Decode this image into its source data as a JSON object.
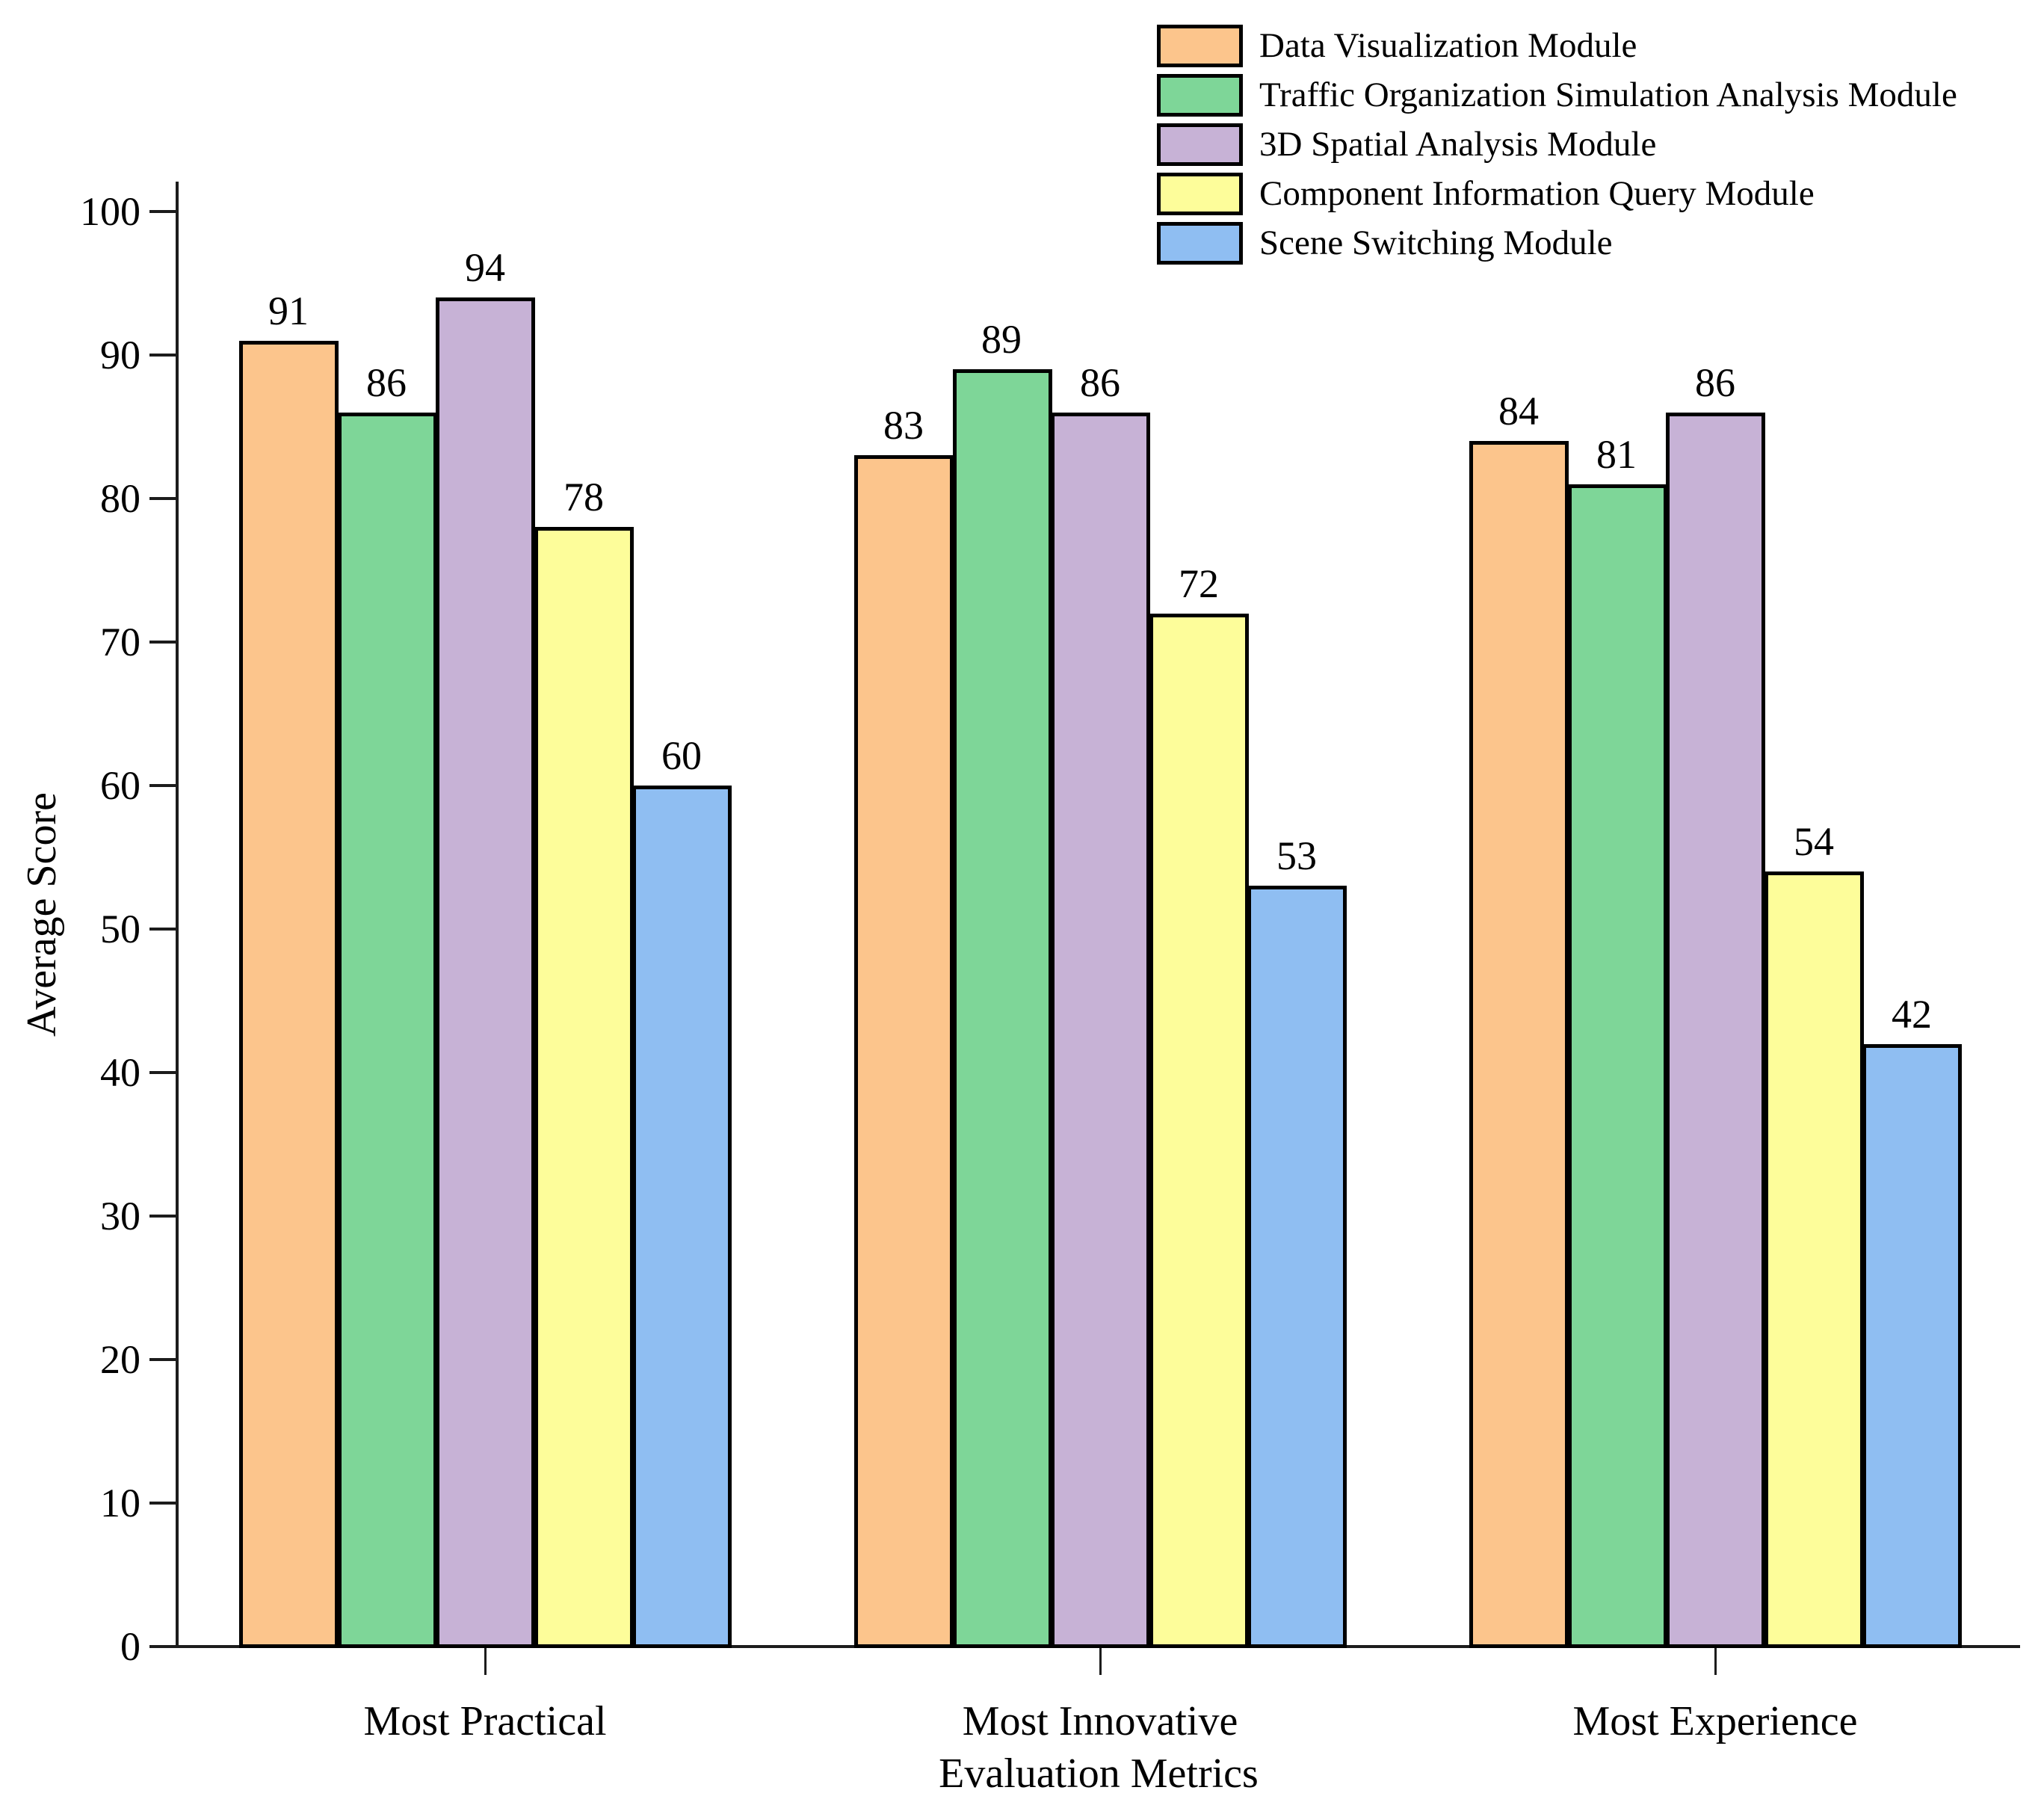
{
  "chart_data": {
    "type": "bar",
    "title": "",
    "xlabel": "Evaluation Metrics",
    "ylabel": "Average Score",
    "categories": [
      "Most Practical",
      "Most Innovative",
      "Most Experience"
    ],
    "series": [
      {
        "name": "Data Visualization Module",
        "color": "#FCC58C",
        "values": [
          91,
          83,
          84
        ]
      },
      {
        "name": "Traffic Organization Simulation Analysis Module",
        "color": "#7ED698",
        "values": [
          86,
          89,
          81
        ]
      },
      {
        "name": "3D Spatial Analysis Module",
        "color": "#C7B2D6",
        "values": [
          94,
          86,
          86
        ]
      },
      {
        "name": "Component Information Query Module",
        "color": "#FDFD9A",
        "values": [
          78,
          72,
          54
        ]
      },
      {
        "name": "Scene Switching Module",
        "color": "#8FBEF2",
        "values": [
          60,
          53,
          42
        ]
      }
    ],
    "ylim": [
      0,
      100
    ],
    "yticks": [
      0,
      10,
      20,
      30,
      40,
      50,
      60,
      70,
      80,
      90,
      100
    ],
    "bar_value_labels": true,
    "legend_position": "top-right",
    "grid": false,
    "axis_color": "#1c1c1c",
    "bar_border_color": "#000000",
    "background_color": "#ffffff"
  }
}
